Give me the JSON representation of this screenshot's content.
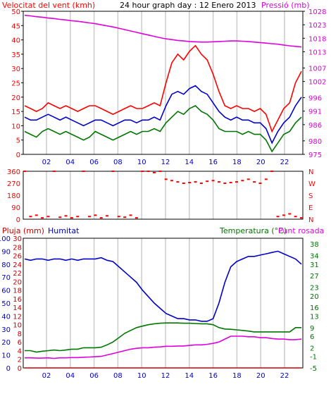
{
  "colors": {
    "red": "#ff0000",
    "blue": "#0000cc",
    "green": "#007700",
    "magenta": "#dd00dd",
    "darkred": "#cc0000",
    "grid": "#cccccc",
    "axis": "#000000"
  },
  "chart_data": [
    {
      "type": "line",
      "title": "24 hour graph day : 12 Enero 2013",
      "ylabel_left": "Velocitat del vent (kmh)",
      "ylabel_right": "Pressió (mb)",
      "x_ticks": [
        "02",
        "04",
        "06",
        "08",
        "10",
        "12",
        "14",
        "16",
        "18",
        "20",
        "22",
        ""
      ],
      "ylim_left": [
        0,
        50
      ],
      "yticks_left": [
        0,
        5,
        10,
        15,
        20,
        25,
        30,
        35,
        40,
        45,
        50
      ],
      "ylim_right": [
        975,
        1028
      ],
      "yticks_right": [
        975,
        980,
        986,
        991,
        996,
        1002,
        1007,
        1013,
        1018,
        1023,
        1028
      ],
      "series": [
        {
          "color_key": "magenta",
          "axis": "right",
          "values": [
            1026.5,
            1026.3,
            1026.0,
            1025.8,
            1025.5,
            1025.3,
            1025.0,
            1024.8,
            1024.5,
            1024.3,
            1024.0,
            1023.7,
            1023.4,
            1023.0,
            1022.6,
            1022.2,
            1021.7,
            1021.2,
            1020.7,
            1020.2,
            1019.7,
            1019.2,
            1018.7,
            1018.2,
            1017.8,
            1017.5,
            1017.2,
            1017.0,
            1016.8,
            1016.7,
            1016.6,
            1016.6,
            1016.7,
            1016.8,
            1016.9,
            1017.0,
            1017.0,
            1016.9,
            1016.8,
            1016.6,
            1016.4,
            1016.2,
            1016.0,
            1015.8,
            1015.5,
            1015.2,
            1015.0,
            1014.8
          ]
        },
        {
          "color_key": "red",
          "axis": "left",
          "values": [
            17,
            16,
            15,
            16,
            18,
            17,
            16,
            17,
            16,
            15,
            16,
            17,
            17,
            16,
            15,
            14,
            15,
            16,
            17,
            16,
            16,
            17,
            18,
            17,
            25,
            32,
            35,
            33,
            36,
            38,
            35,
            33,
            28,
            22,
            17,
            16,
            17,
            16,
            16,
            15,
            16,
            14,
            8,
            12,
            16,
            18,
            25,
            29
          ]
        },
        {
          "color_key": "blue",
          "axis": "left",
          "values": [
            13,
            12,
            12,
            13,
            14,
            13,
            12,
            13,
            12,
            11,
            10,
            11,
            12,
            12,
            11,
            10,
            11,
            12,
            12,
            11,
            12,
            12,
            13,
            12,
            17,
            21,
            22,
            21,
            23,
            24,
            22,
            21,
            18,
            15,
            13,
            12,
            13,
            12,
            12,
            11,
            11,
            9,
            4,
            8,
            11,
            13,
            17,
            20
          ]
        },
        {
          "color_key": "green",
          "axis": "left",
          "values": [
            8,
            7,
            6,
            8,
            9,
            8,
            7,
            8,
            7,
            6,
            5,
            6,
            8,
            7,
            6,
            5,
            6,
            7,
            8,
            7,
            8,
            8,
            9,
            8,
            11,
            13,
            15,
            14,
            16,
            17,
            15,
            14,
            12,
            9,
            8,
            8,
            8,
            7,
            8,
            7,
            7,
            5,
            1,
            4,
            7,
            8,
            11,
            13
          ]
        }
      ]
    },
    {
      "type": "scatter",
      "title": "",
      "yticks_left": [
        0,
        90,
        180,
        270,
        360
      ],
      "ylim": [
        0,
        360
      ],
      "right_labels": [
        "N",
        "W",
        "S",
        "E",
        "N"
      ],
      "x_ticks": [],
      "series": [
        {
          "color_key": "red",
          "values": [
            360,
            20,
            30,
            10,
            20,
            360,
            15,
            25,
            10,
            20,
            360,
            20,
            30,
            10,
            25,
            360,
            20,
            15,
            30,
            10,
            360,
            360,
            350,
            360,
            300,
            290,
            280,
            270,
            275,
            280,
            270,
            285,
            290,
            280,
            270,
            275,
            280,
            290,
            300,
            280,
            270,
            300,
            360,
            20,
            30,
            40,
            20,
            10
          ]
        }
      ]
    },
    {
      "type": "line",
      "title": "",
      "labels_top_left": [
        "Pluja (mm)",
        "Humitat"
      ],
      "labels_top_right": [
        "Temperatura (°C)",
        "Punt rosada"
      ],
      "x_ticks": [
        "02",
        "04",
        "06",
        "08",
        "10",
        "12",
        "14",
        "16",
        "18",
        "20",
        "22",
        ""
      ],
      "yticks_rain": [
        0,
        2,
        4,
        6,
        8,
        10,
        12,
        14,
        16,
        18,
        20,
        22,
        24,
        26,
        28,
        30
      ],
      "yticks_hum": [
        0,
        10,
        20,
        30,
        40,
        50,
        60,
        70,
        80,
        90,
        100
      ],
      "yticks_temp": [
        -5,
        -1,
        2,
        6,
        9,
        13,
        16,
        20,
        23,
        27,
        31,
        34,
        38
      ],
      "ylim_temp": [
        -5,
        40
      ],
      "ylim_hum": [
        0,
        100
      ],
      "series": [
        {
          "color_key": "blue",
          "axis": "hum",
          "values": [
            84,
            83,
            84,
            84,
            83,
            84,
            84,
            83,
            84,
            83,
            84,
            84,
            84,
            85,
            83,
            82,
            78,
            74,
            70,
            66,
            60,
            55,
            50,
            46,
            42,
            40,
            38,
            38,
            37,
            37,
            36,
            36,
            38,
            50,
            66,
            78,
            82,
            84,
            86,
            86,
            87,
            88,
            89,
            90,
            88,
            86,
            84,
            80
          ]
        },
        {
          "color_key": "green",
          "axis": "temp",
          "values": [
            1,
            1,
            0.5,
            0.8,
            1,
            1.2,
            1,
            1.2,
            1.5,
            1.5,
            2,
            2,
            2,
            2.2,
            3,
            4,
            5.5,
            7,
            8,
            9,
            9.5,
            10,
            10.3,
            10.5,
            10.6,
            10.6,
            10.6,
            10.5,
            10.5,
            10.4,
            10.3,
            10.3,
            10,
            9,
            8.5,
            8.4,
            8.2,
            8,
            7.8,
            7.5,
            7.5,
            7.5,
            7.5,
            7.5,
            7.5,
            7.5,
            9,
            9
          ]
        },
        {
          "color_key": "magenta",
          "axis": "temp",
          "values": [
            -1.5,
            -1.5,
            -1.6,
            -1.6,
            -1.5,
            -1.7,
            -1.5,
            -1.5,
            -1.4,
            -1.4,
            -1.3,
            -1.2,
            -1.1,
            -1,
            -0.5,
            0,
            0.5,
            1,
            1.5,
            1.8,
            2,
            2,
            2.2,
            2.3,
            2.5,
            2.5,
            2.6,
            2.6,
            2.8,
            3,
            3,
            3.2,
            3.5,
            4,
            5,
            6,
            6,
            6,
            5.8,
            5.8,
            5.5,
            5.5,
            5.2,
            5,
            5,
            4.8,
            4.8,
            5
          ]
        },
        {
          "color_key": "darkred",
          "axis": "rain",
          "values": [
            0,
            0,
            0,
            0,
            0,
            0,
            0,
            0,
            0,
            0,
            0,
            0,
            0,
            0,
            0,
            0,
            0,
            0,
            0,
            0,
            0,
            0,
            0,
            0,
            0,
            0,
            0,
            0,
            0,
            0,
            0,
            0,
            0,
            0,
            0,
            0,
            0,
            0,
            0,
            0,
            0,
            0,
            0,
            0,
            0,
            0,
            0,
            0
          ]
        }
      ]
    }
  ]
}
